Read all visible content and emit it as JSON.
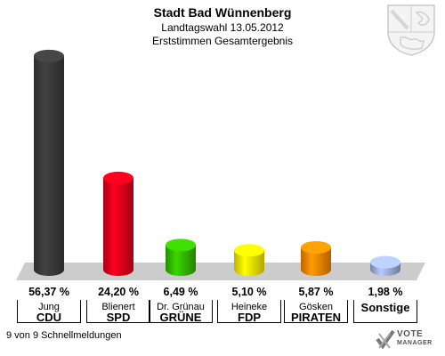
{
  "header": {
    "title": "Stadt Bad Wünnenberg",
    "subtitle1": "Landtagswahl 13.05.2012",
    "subtitle2": "Erststimmen Gesamtergebnis"
  },
  "chart_data": {
    "type": "bar",
    "title": "Stadt Bad Wünnenberg",
    "categories": [
      "CDU",
      "SPD",
      "GRÜNE",
      "FDP",
      "PIRATEN",
      "Sonstige"
    ],
    "candidates": [
      "Jung",
      "Blienert",
      "Dr. Grünau",
      "Heineke",
      "Gösken",
      ""
    ],
    "values": [
      56.37,
      24.2,
      6.49,
      5.1,
      5.87,
      1.98
    ],
    "value_labels": [
      "56,37 %",
      "24,20 %",
      "6,49 %",
      "5,10 %",
      "5,87 %",
      "1,98 %"
    ],
    "colors": [
      "#3a3a3a",
      "#e0001a",
      "#33bb00",
      "#ffee00",
      "#ff8800",
      "#a0b0e0"
    ],
    "ylim": [
      0,
      60
    ],
    "grid": false,
    "legend": "none"
  },
  "footer": {
    "status": "9 von 9 Schnellmeldungen"
  },
  "logo": {
    "line1": "VOTE",
    "line2": "MANAGER",
    "icon": "check-mark-icon"
  },
  "crest": {
    "icon": "nrw-coat-of-arms-icon"
  }
}
